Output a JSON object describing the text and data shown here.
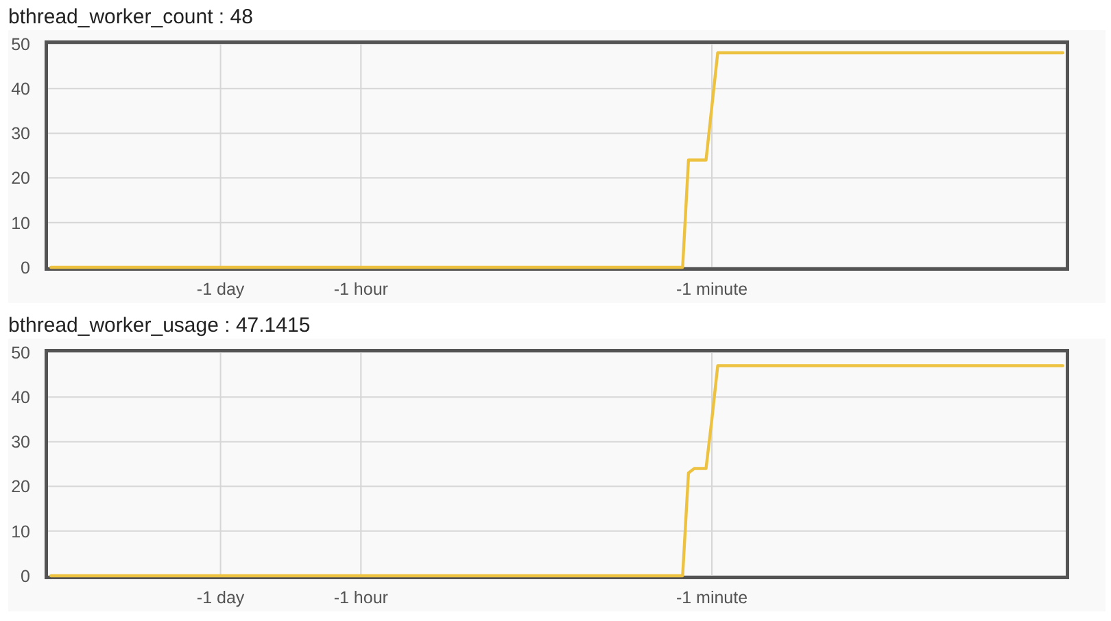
{
  "chart_data": [
    {
      "type": "line",
      "title": "bthread_worker_count : 48",
      "categories": [
        null,
        null,
        null,
        null,
        null,
        null,
        null,
        null,
        null,
        null,
        null,
        null,
        null,
        null,
        null,
        null,
        null,
        null,
        null,
        null,
        null,
        null,
        null,
        null,
        null,
        null,
        null,
        null,
        null,
        "-1 day",
        null,
        null,
        null,
        null,
        null,
        null,
        null,
        null,
        null,
        null,
        null,
        null,
        null,
        null,
        null,
        null,
        null,
        null,
        null,
        null,
        null,
        null,
        null,
        "-1 hour",
        null,
        null,
        null,
        null,
        null,
        null,
        null,
        null,
        null,
        null,
        null,
        null,
        null,
        null,
        null,
        null,
        null,
        null,
        null,
        null,
        null,
        null,
        null,
        null,
        null,
        null,
        null,
        null,
        null,
        null,
        null,
        null,
        null,
        null,
        null,
        null,
        null,
        null,
        null,
        null,
        null,
        null,
        null,
        null,
        null,
        null,
        null,
        null,
        null,
        null,
        null,
        null,
        null,
        null,
        null,
        null,
        null,
        null,
        null,
        "-1 minute",
        null,
        null,
        null,
        null,
        null,
        null,
        null,
        null,
        null,
        null,
        null,
        null,
        null,
        null,
        null,
        null,
        null,
        null,
        null,
        null,
        null,
        null,
        null,
        null,
        null,
        null,
        null,
        null,
        null,
        null,
        null,
        null,
        null,
        null,
        null,
        null,
        null,
        null,
        null,
        null,
        null,
        null,
        null,
        null,
        null,
        null,
        null,
        null,
        null,
        null,
        null,
        null,
        null,
        null,
        null,
        null,
        null,
        null,
        null,
        null
      ],
      "ylim": [
        0,
        50
      ],
      "yticks": [
        0,
        10,
        20,
        30,
        40,
        50
      ],
      "grid": true,
      "series": [
        {
          "color": "#edc240",
          "values": [
            0,
            0,
            0,
            0,
            0,
            0,
            0,
            0,
            0,
            0,
            0,
            0,
            0,
            0,
            0,
            0,
            0,
            0,
            0,
            0,
            0,
            0,
            0,
            0,
            0,
            0,
            0,
            0,
            0,
            0,
            0,
            0,
            0,
            0,
            0,
            0,
            0,
            0,
            0,
            0,
            0,
            0,
            0,
            0,
            0,
            0,
            0,
            0,
            0,
            0,
            0,
            0,
            0,
            0,
            0,
            0,
            0,
            0,
            0,
            0,
            0,
            0,
            0,
            0,
            0,
            0,
            0,
            0,
            0,
            0,
            0,
            0,
            0,
            0,
            0,
            0,
            0,
            0,
            0,
            0,
            0,
            0,
            0,
            0,
            0,
            0,
            0,
            0,
            0,
            0,
            0,
            0,
            0,
            0,
            0,
            0,
            0,
            0,
            0,
            0,
            0,
            0,
            0,
            0,
            0,
            0,
            0,
            0,
            0,
            24,
            24,
            24,
            24,
            36,
            48,
            48,
            48,
            48,
            48,
            48,
            48,
            48,
            48,
            48,
            48,
            48,
            48,
            48,
            48,
            48,
            48,
            48,
            48,
            48,
            48,
            48,
            48,
            48,
            48,
            48,
            48,
            48,
            48,
            48,
            48,
            48,
            48,
            48,
            48,
            48,
            48,
            48,
            48,
            48,
            48,
            48,
            48,
            48,
            48,
            48,
            48,
            48,
            48,
            48,
            48,
            48,
            48,
            48,
            48,
            48,
            48,
            48,
            48,
            48
          ]
        }
      ]
    },
    {
      "type": "line",
      "title": "bthread_worker_usage : 47.1415",
      "categories": [
        null,
        null,
        null,
        null,
        null,
        null,
        null,
        null,
        null,
        null,
        null,
        null,
        null,
        null,
        null,
        null,
        null,
        null,
        null,
        null,
        null,
        null,
        null,
        null,
        null,
        null,
        null,
        null,
        null,
        "-1 day",
        null,
        null,
        null,
        null,
        null,
        null,
        null,
        null,
        null,
        null,
        null,
        null,
        null,
        null,
        null,
        null,
        null,
        null,
        null,
        null,
        null,
        null,
        null,
        "-1 hour",
        null,
        null,
        null,
        null,
        null,
        null,
        null,
        null,
        null,
        null,
        null,
        null,
        null,
        null,
        null,
        null,
        null,
        null,
        null,
        null,
        null,
        null,
        null,
        null,
        null,
        null,
        null,
        null,
        null,
        null,
        null,
        null,
        null,
        null,
        null,
        null,
        null,
        null,
        null,
        null,
        null,
        null,
        null,
        null,
        null,
        null,
        null,
        null,
        null,
        null,
        null,
        null,
        null,
        null,
        null,
        null,
        null,
        null,
        null,
        "-1 minute",
        null,
        null,
        null,
        null,
        null,
        null,
        null,
        null,
        null,
        null,
        null,
        null,
        null,
        null,
        null,
        null,
        null,
        null,
        null,
        null,
        null,
        null,
        null,
        null,
        null,
        null,
        null,
        null,
        null,
        null,
        null,
        null,
        null,
        null,
        null,
        null,
        null,
        null,
        null,
        null,
        null,
        null,
        null,
        null,
        null,
        null,
        null,
        null,
        null,
        null,
        null,
        null,
        null,
        null,
        null,
        null,
        null,
        null,
        null,
        null
      ],
      "ylim": [
        0,
        50
      ],
      "yticks": [
        0,
        10,
        20,
        30,
        40,
        50
      ],
      "grid": true,
      "series": [
        {
          "color": "#edc240",
          "values": [
            0,
            0,
            0,
            0,
            0,
            0,
            0,
            0,
            0,
            0,
            0,
            0,
            0,
            0,
            0,
            0,
            0,
            0,
            0,
            0,
            0,
            0,
            0,
            0,
            0,
            0,
            0,
            0,
            0,
            0,
            0,
            0,
            0,
            0,
            0,
            0,
            0,
            0,
            0,
            0,
            0,
            0,
            0,
            0,
            0,
            0,
            0,
            0,
            0,
            0,
            0,
            0,
            0,
            0,
            0,
            0,
            0,
            0,
            0,
            0,
            0,
            0,
            0,
            0,
            0,
            0,
            0,
            0,
            0,
            0,
            0,
            0,
            0,
            0,
            0,
            0,
            0,
            0,
            0,
            0,
            0,
            0,
            0,
            0,
            0,
            0,
            0,
            0,
            0,
            0,
            0,
            0,
            0,
            0,
            0,
            0,
            0,
            0,
            0,
            0,
            0,
            0,
            0,
            0,
            0,
            0,
            0,
            0,
            0,
            23,
            24,
            24,
            24,
            35,
            47,
            47,
            47,
            47,
            47,
            47,
            47,
            47,
            47,
            47,
            47,
            47,
            47,
            47,
            47,
            47,
            47,
            47,
            47,
            47,
            47,
            47,
            47,
            47,
            47,
            47,
            47,
            47,
            47,
            47,
            47,
            47,
            47,
            47,
            47,
            47,
            47,
            47,
            47,
            47,
            47,
            47,
            47,
            47,
            47,
            47,
            47,
            47,
            47,
            47,
            47,
            47,
            47,
            47,
            47,
            47,
            47,
            47,
            47,
            47
          ]
        }
      ]
    }
  ]
}
